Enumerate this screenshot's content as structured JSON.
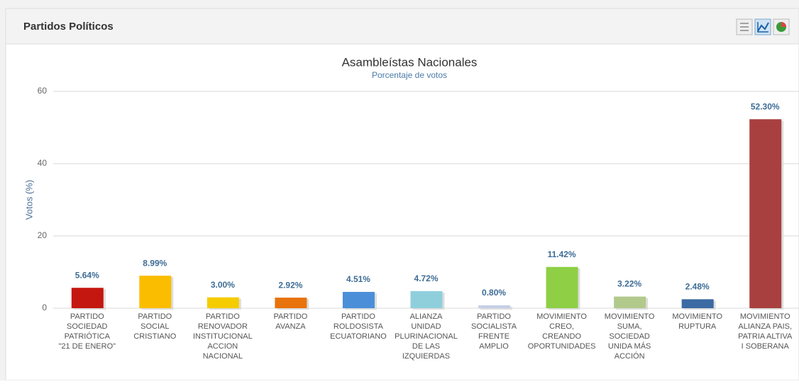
{
  "panel": {
    "title": "Partidos Políticos"
  },
  "chart_data": {
    "type": "bar",
    "title": "Asambleístas Nacionales",
    "subtitle": "Porcentaje de votos",
    "y_label": "Votos (%)",
    "categories": [
      "PARTIDO\nSOCIEDAD\nPATRIÓTICA\n\"21 DE ENERO\"",
      "PARTIDO\nSOCIAL\nCRISTIANO",
      "PARTIDO\nRENOVADOR\nINSTITUCIONAL\nACCION\nNACIONAL",
      "PARTIDO\nAVANZA",
      "PARTIDO\nROLDOSISTA\nECUATORIANO",
      "ALIANZA\nUNIDAD\nPLURINACIONAL\nDE LAS\nIZQUIERDAS",
      "PARTIDO\nSOCIALISTA\nFRENTE\nAMPLIO",
      "MOVIMIENTO\nCREO,\nCREANDO\nOPORTUNIDADES",
      "MOVIMIENTO\nSUMA,\nSOCIEDAD\nUNIDA MÁS\nACCIÓN",
      "MOVIMIENTO\nRUPTURA",
      "MOVIMIENTO\nALIANZA PAIS,\nPATRIA ALTIVA\nI SOBERANA"
    ],
    "values": [
      5.64,
      8.99,
      3.0,
      2.92,
      4.51,
      4.72,
      0.8,
      11.42,
      3.22,
      2.48,
      52.3
    ],
    "value_labels": [
      "5.64%",
      "8.99%",
      "3.00%",
      "2.92%",
      "4.51%",
      "4.72%",
      "0.80%",
      "11.42%",
      "3.22%",
      "2.48%",
      "52.30%"
    ],
    "colors": [
      "#c4170f",
      "#fbbd00",
      "#f5cc00",
      "#e8720c",
      "#4a8fd8",
      "#8fcfdc",
      "#c5cfe6",
      "#8ecf45",
      "#b2c98c",
      "#3c6aa2",
      "#a8403f"
    ],
    "ylim": [
      0,
      60
    ],
    "yticks": [
      0,
      20,
      40,
      60
    ],
    "grid": true
  }
}
